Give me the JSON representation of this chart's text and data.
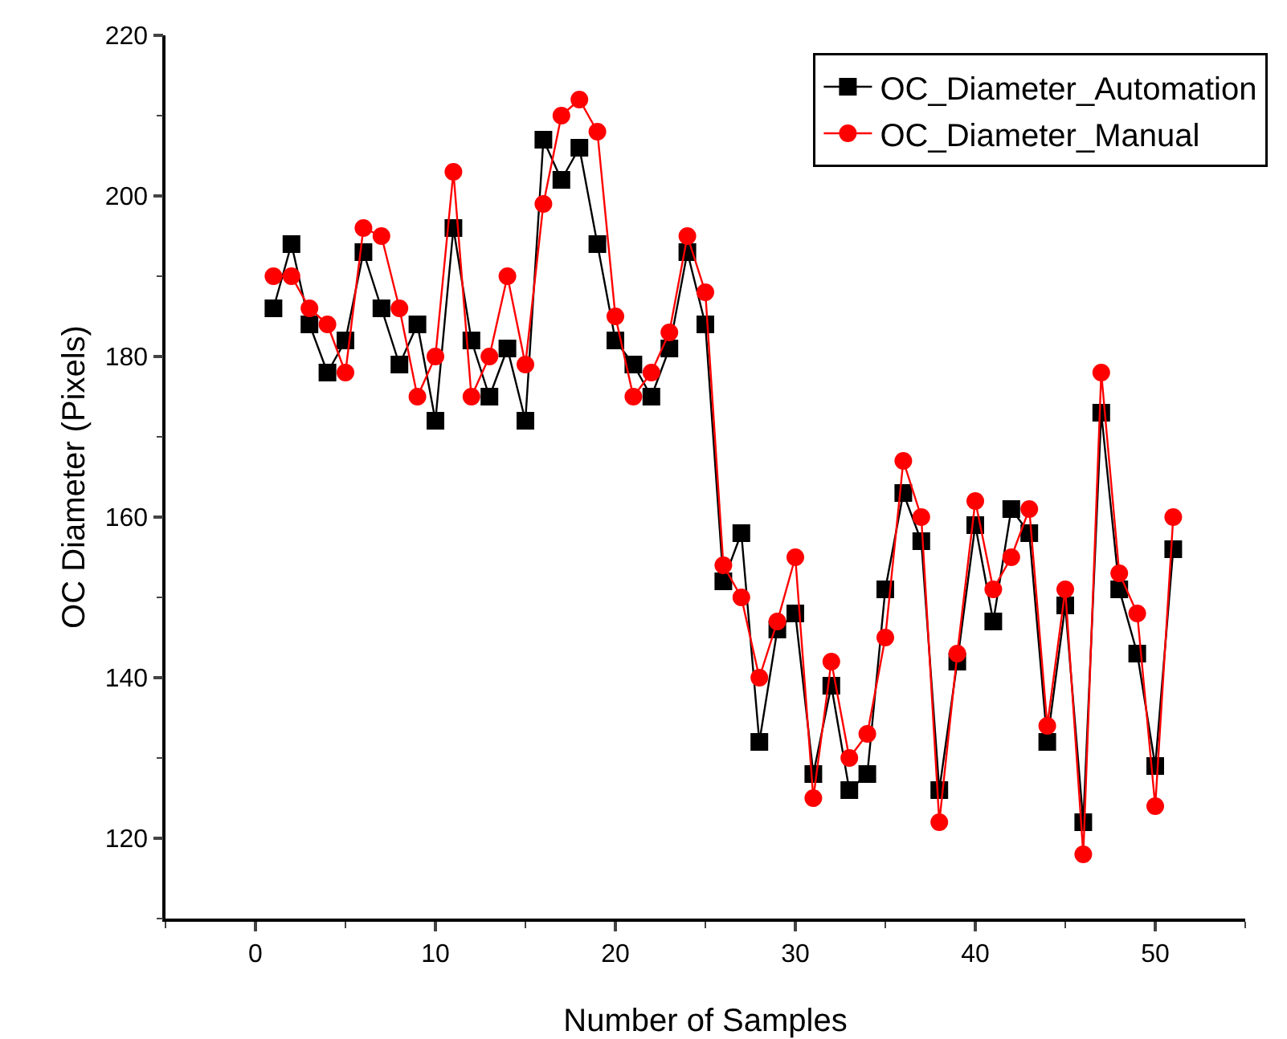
{
  "chart_data": {
    "type": "line",
    "xlabel": "Number of Samples",
    "ylabel": "OC Diameter (Pixels)",
    "x": [
      1,
      2,
      3,
      4,
      5,
      6,
      7,
      8,
      9,
      10,
      11,
      12,
      13,
      14,
      15,
      16,
      17,
      18,
      19,
      20,
      21,
      22,
      23,
      24,
      25,
      26,
      27,
      28,
      29,
      30,
      31,
      32,
      33,
      34,
      35,
      36,
      37,
      38,
      39,
      40,
      41,
      42,
      43,
      44,
      45,
      46,
      47,
      48,
      49,
      50,
      51
    ],
    "series": [
      {
        "name": "OC_Diameter_Automation",
        "color": "#000000",
        "marker": "square",
        "values": [
          186,
          194,
          184,
          178,
          182,
          193,
          186,
          179,
          184,
          172,
          196,
          182,
          175,
          181,
          172,
          207,
          202,
          206,
          194,
          182,
          179,
          175,
          181,
          193,
          184,
          152,
          158,
          132,
          146,
          148,
          128,
          139,
          126,
          128,
          151,
          163,
          157,
          126,
          142,
          159,
          147,
          161,
          158,
          132,
          149,
          122,
          173,
          151,
          143,
          129,
          156
        ]
      },
      {
        "name": "OC_Diameter_Manual",
        "color": "#ff0000",
        "marker": "circle",
        "values": [
          190,
          190,
          186,
          184,
          178,
          196,
          195,
          186,
          175,
          180,
          203,
          175,
          180,
          190,
          179,
          199,
          210,
          212,
          208,
          185,
          175,
          178,
          183,
          195,
          188,
          154,
          150,
          140,
          147,
          155,
          125,
          142,
          130,
          133,
          145,
          167,
          160,
          122,
          143,
          162,
          151,
          155,
          161,
          134,
          151,
          118,
          178,
          153,
          148,
          124,
          160
        ]
      }
    ],
    "xlim": [
      -5,
      55
    ],
    "xticks": [
      0,
      10,
      20,
      30,
      40,
      50
    ],
    "ylim": [
      110,
      220
    ],
    "yticks": [
      120,
      140,
      160,
      180,
      200,
      220
    ],
    "grid": false,
    "legend": "top right",
    "line_style": "solid"
  }
}
